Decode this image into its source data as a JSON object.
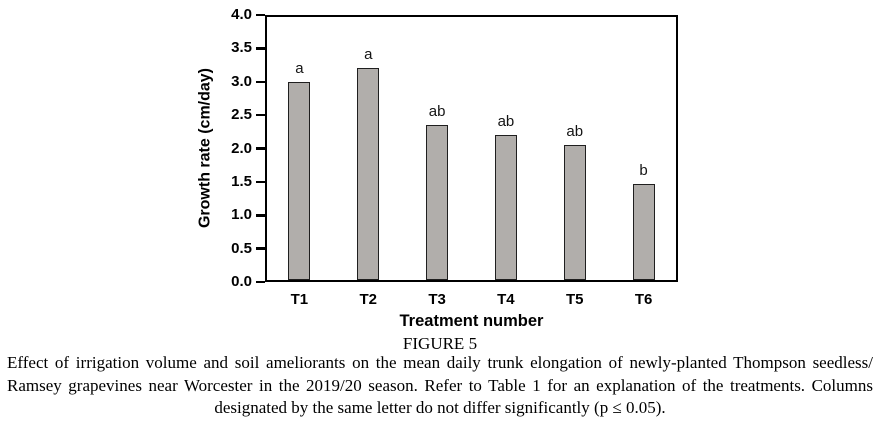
{
  "figure": {
    "label": "FIGURE 5",
    "caption_lines": [
      "Effect of irrigation volume and soil ameliorants on the mean daily trunk elongation of newly-planted Thompson seedless/",
      "Ramsey grapevines near Worcester in the 2019/20 season. Refer to Table 1 for an explanation of the treatments. Columns",
      "designated by the same letter do not differ significantly (p ≤ 0.05)."
    ]
  },
  "chart_data": {
    "type": "bar",
    "title": "",
    "categories": [
      "T1",
      "T2",
      "T3",
      "T4",
      "T5",
      "T6"
    ],
    "values": [
      3.0,
      3.2,
      2.35,
      2.2,
      2.05,
      1.47
    ],
    "bar_letters": [
      "a",
      "a",
      "ab",
      "ab",
      "ab",
      "b"
    ],
    "xlabel": "Treatment number",
    "ylabel": "Growth rate (cm/day)",
    "ylim": [
      0.0,
      4.0
    ],
    "ytick_step": 0.5,
    "ytick_labels": [
      "0.0",
      "0.5",
      "1.0",
      "1.5",
      "2.0",
      "2.5",
      "3.0",
      "3.5",
      "4.0"
    ],
    "grid": false,
    "legend_position": "none",
    "bar_color": "#b1aeab",
    "bar_border_color": "#1f1f1f",
    "axis_color": "#000000"
  }
}
